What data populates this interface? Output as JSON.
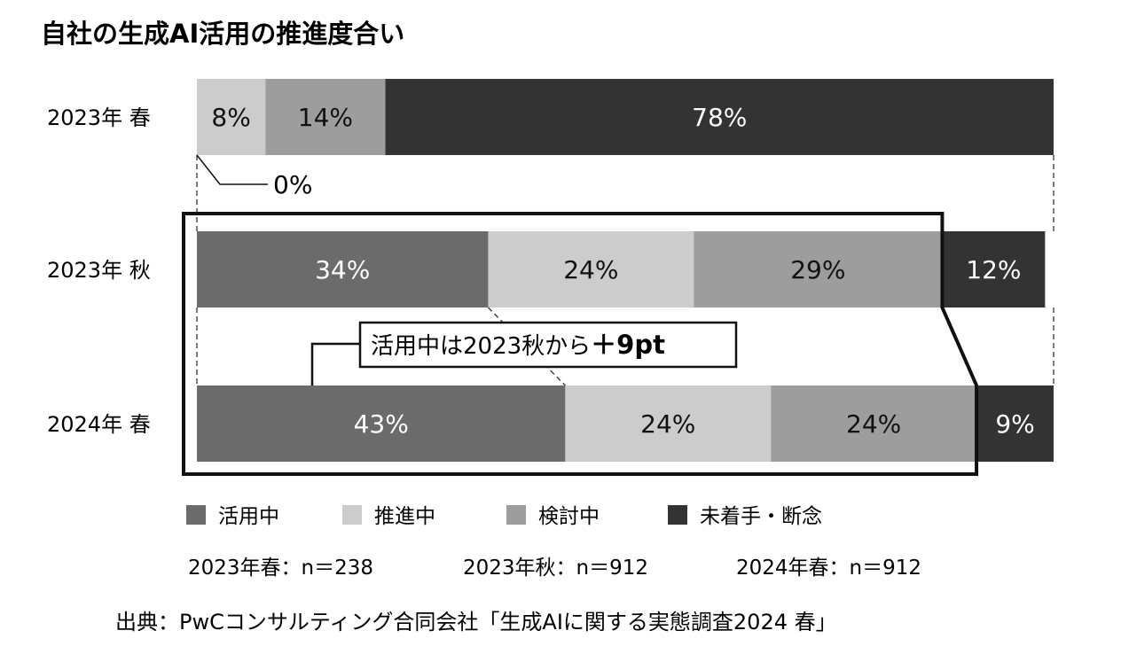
{
  "chart_data": {
    "type": "bar",
    "orientation": "horizontal",
    "stacked": true,
    "percent": true,
    "title": "自社の生成AI活用の推進度合い",
    "categories": [
      "2023年 春",
      "2023年 秋",
      "2024年 春"
    ],
    "series": [
      {
        "name": "活用中",
        "values": [
          0,
          34,
          43
        ],
        "color": "#6b6b6b",
        "label_color": "#ffffff"
      },
      {
        "name": "推進中",
        "values": [
          8,
          24,
          24
        ],
        "color": "#cccccc",
        "label_color": "#111111"
      },
      {
        "name": "検討中",
        "values": [
          14,
          29,
          24
        ],
        "color": "#9d9d9d",
        "label_color": "#111111"
      },
      {
        "name": "未着手・断念",
        "values": [
          78,
          12,
          9
        ],
        "color": "#333333",
        "label_color": "#ffffff"
      }
    ],
    "data_labels": [
      [
        "0%",
        "8%",
        "14%",
        "78%"
      ],
      [
        "34%",
        "24%",
        "29%",
        "12%"
      ],
      [
        "43%",
        "24%",
        "24%",
        "9%"
      ]
    ],
    "annotations": {
      "zero_callout": "0%",
      "callout_text_1": "活用中は2023秋から",
      "callout_text_2": "＋9pt"
    },
    "sample_sizes": [
      "2023年春：n＝238",
      "2023年秋：n＝912",
      "2024年春：n＝912"
    ],
    "source": "出典：PwCコンサルティング合同会社「生成AIに関する実態調査2024 春」",
    "legend_placement": "bottom",
    "grid": false
  }
}
